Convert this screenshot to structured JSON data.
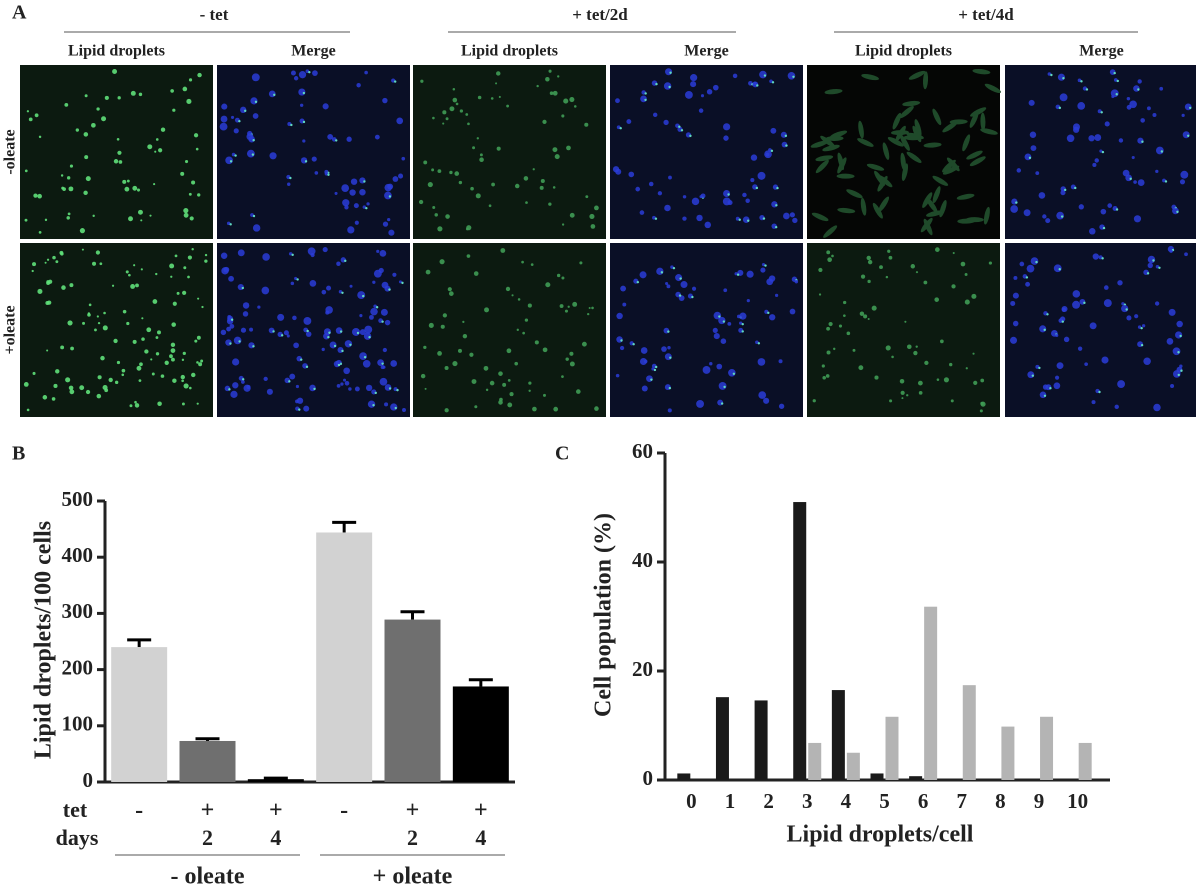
{
  "panel_a": {
    "label": "A",
    "groups": [
      {
        "label": "- tet",
        "columns": [
          "Lipid droplets",
          "Merge"
        ]
      },
      {
        "label": "+ tet/2d",
        "columns": [
          "Lipid droplets",
          "Merge"
        ]
      },
      {
        "label": "+ tet/4d",
        "columns": [
          "Lipid droplets",
          "Merge"
        ]
      }
    ],
    "rows": [
      "-oleate",
      "+oleate"
    ]
  },
  "chart_data": [
    {
      "type": "bar",
      "panel_label": "B",
      "ylabel": "Lipid droplets/100 cells",
      "row_labels": [
        "tet",
        "days"
      ],
      "groups": [
        {
          "label": "- oleate",
          "tet": [
            "-",
            "+",
            "+"
          ],
          "days": [
            null,
            "2",
            "4"
          ],
          "values": [
            240,
            73,
            5
          ],
          "errors": [
            13,
            4,
            2
          ],
          "colors": [
            "#d2d2d2",
            "#6f6f6f",
            "#000000"
          ]
        },
        {
          "label": "+ oleate",
          "tet": [
            "-",
            "+",
            "+"
          ],
          "days": [
            null,
            "2",
            "4"
          ],
          "values": [
            444,
            289,
            170
          ],
          "errors": [
            18,
            14,
            12
          ],
          "colors": [
            "#d2d2d2",
            "#6f6f6f",
            "#000000"
          ]
        }
      ],
      "ylim": [
        0,
        500
      ],
      "yticks": [
        0,
        100,
        200,
        300,
        400,
        500
      ]
    },
    {
      "type": "grouped_bar",
      "panel_label": "C",
      "xlabel": "Lipid droplets/cell",
      "ylabel": "Cell population (%)",
      "categories": [
        "0",
        "1",
        "2",
        "3",
        "4",
        "5",
        "6",
        "7",
        "8",
        "9",
        "10"
      ],
      "series": [
        {
          "color": "#1a1a1a",
          "values": [
            1.2,
            15.2,
            14.6,
            51,
            16.5,
            1.2,
            0.7,
            0,
            0,
            0,
            0
          ]
        },
        {
          "color": "#b4b4b4",
          "values": [
            0,
            0,
            0,
            6.8,
            5,
            11.6,
            31.8,
            17.4,
            9.8,
            11.6,
            6.8
          ]
        }
      ],
      "ylim": [
        0,
        60
      ],
      "yticks": [
        0,
        20,
        40,
        60
      ]
    }
  ]
}
